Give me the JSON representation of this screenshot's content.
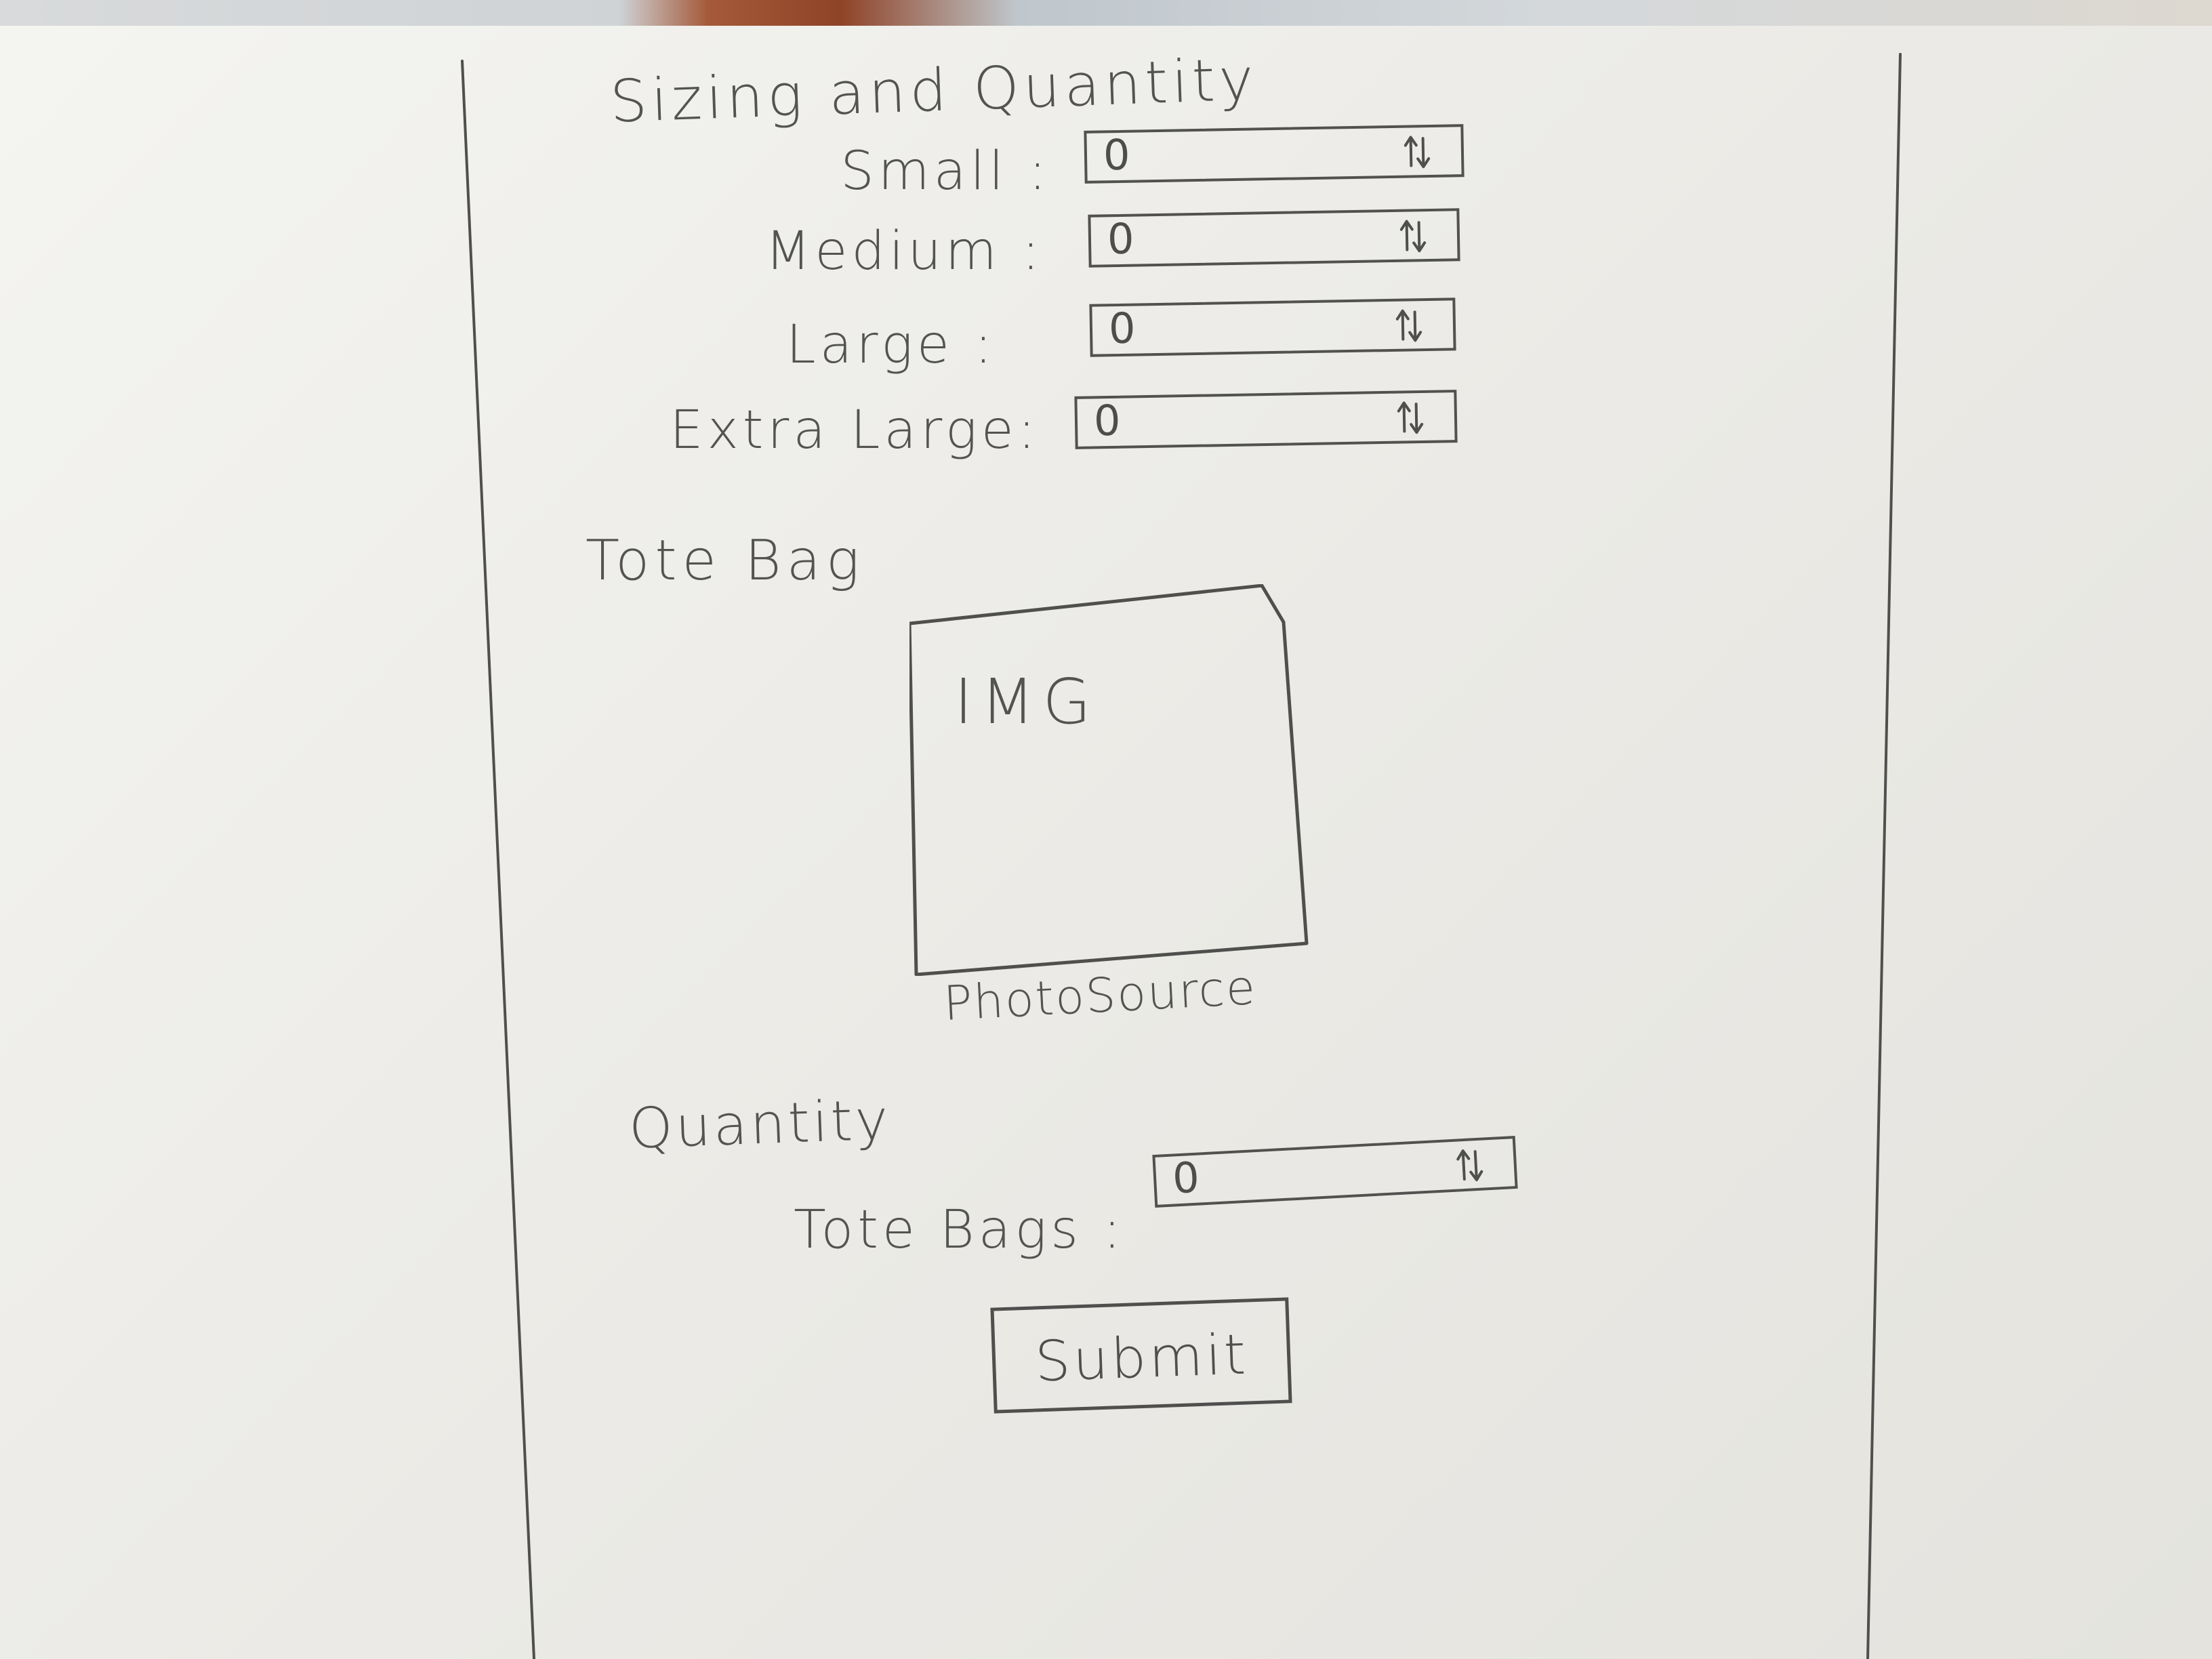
{
  "sizing": {
    "title": "Sizing and Quantity",
    "rows": [
      {
        "label": "Small :",
        "value": "0"
      },
      {
        "label": "Medium :",
        "value": "0"
      },
      {
        "label": "Large :",
        "value": "0"
      },
      {
        "label": "Extra Large:",
        "value": "0"
      }
    ]
  },
  "tote": {
    "title": "Tote Bag",
    "image_text": "IMG",
    "caption": "PhotoSource"
  },
  "quantity": {
    "title": "Quantity",
    "tote_bags_label": "Tote Bags :",
    "tote_bags_value": "0"
  },
  "actions": {
    "submit_label": "Submit"
  },
  "icons": {
    "stepper": "up-down-arrow-icon"
  },
  "colors": {
    "paper": "#eeeeea",
    "pencil": "#4f4f4d",
    "desk_wood": "#8f4327"
  }
}
